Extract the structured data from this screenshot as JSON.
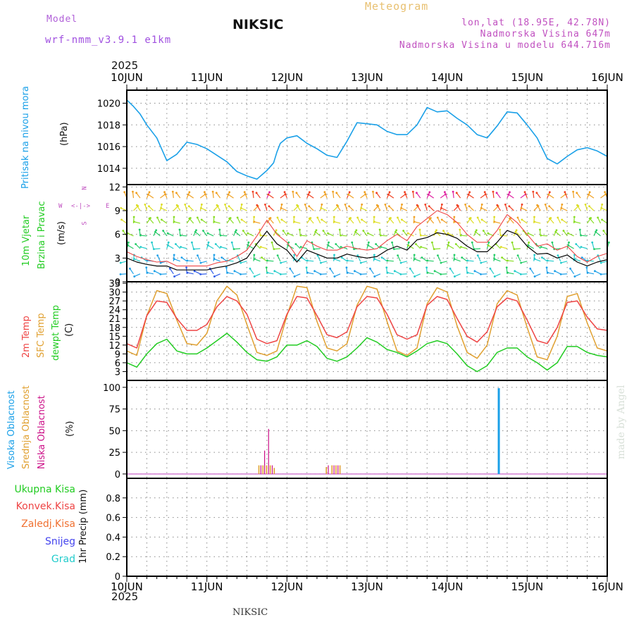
{
  "header": {
    "model_label": "Model",
    "model_name": "wrf-nmm_v3.9.1  e1km",
    "station": "NIKSIC",
    "title": "Meteogram",
    "lonlat": "lon,lat (18.95E, 42.78N)",
    "elevation": "Nadmorska Visina 647m",
    "model_elevation": "Nadmorska Visina u modelu 644.716m",
    "year_top": "2025",
    "year_bottom": "2025",
    "footer_station": "NIKSIC",
    "credit": "made by Angel"
  },
  "colors": {
    "pressure": "#1aa0e8",
    "temp2m": "#ee4444",
    "sfc": "#e0a030",
    "dewpt": "#22cc22",
    "high_cloud": "#1aa0e8",
    "mid_cloud": "#e0a030",
    "low_cloud": "#cc1188",
    "grid": "#888888"
  },
  "x_axis": {
    "days": [
      "10JUN",
      "11JUN",
      "12JUN",
      "13JUN",
      "14JUN",
      "15JUN",
      "16JUN"
    ],
    "hours_total": 144
  },
  "panels": {
    "pressure": {
      "labels": [
        "Pritisak na nivou mora"
      ],
      "unit": "(hPa)",
      "ylim": [
        1012.5,
        1021.2
      ],
      "ticks": [
        1014,
        1016,
        1018,
        1020
      ]
    },
    "wind": {
      "labels": [
        "10m Vjetar",
        "Brzina i Pravac"
      ],
      "unit": "(m/s)",
      "ylim": [
        0,
        12.3
      ],
      "ticks": [
        0,
        3,
        6,
        9,
        12
      ],
      "compass": {
        "n": "N",
        "s": "S",
        "w": "W",
        "e": "E",
        "arrows": "<-|->"
      }
    },
    "temperature": {
      "labels": [
        "2m Temp",
        "SFC Temp",
        "dewpt Temp"
      ],
      "unit": "(C)",
      "ylim": [
        0,
        33.5
      ],
      "ticks": [
        3,
        6,
        9,
        12,
        15,
        18,
        21,
        24,
        27,
        30,
        33
      ]
    },
    "clouds": {
      "labels": [
        "Visoka Oblacnost",
        "Srednja Oblacnost",
        "Niska Oblacnost"
      ],
      "unit": "(%)",
      "ylim": [
        -5,
        108
      ],
      "ticks": [
        0,
        25,
        50,
        75,
        100
      ]
    },
    "precip": {
      "labels": [
        "Ukupna Kisa",
        "Konvek.Kisa",
        "Zaledj.Kisa",
        "Snijeg",
        "Grad"
      ],
      "unit": "1hr Precip (mm)",
      "ylim": [
        0,
        1.0
      ],
      "ticks": [
        0,
        0.2,
        0.4,
        0.6,
        0.8
      ]
    }
  },
  "chart_data": [
    {
      "type": "line",
      "ylabel": "(hPa)",
      "x_hours": [
        0,
        2,
        4,
        6,
        9,
        12,
        15,
        18,
        21,
        24,
        27,
        30,
        33,
        36,
        39,
        42,
        44,
        45,
        46,
        48,
        51,
        54,
        57,
        60,
        63,
        66,
        69,
        72,
        75,
        78,
        81,
        84,
        87,
        90,
        93,
        96,
        99,
        102,
        105,
        108,
        111,
        114,
        117,
        120,
        123,
        126,
        129,
        132,
        135,
        138,
        141,
        144
      ],
      "series": [
        {
          "name": "Pritisak na nivou mora",
          "values": [
            1020.3,
            1019.7,
            1019.0,
            1018.0,
            1016.8,
            1014.7,
            1015.3,
            1016.4,
            1016.2,
            1015.8,
            1015.2,
            1014.6,
            1013.7,
            1013.3,
            1013.0,
            1013.8,
            1014.5,
            1015.5,
            1016.3,
            1016.8,
            1017.0,
            1016.3,
            1015.8,
            1015.2,
            1015.0,
            1016.5,
            1018.2,
            1018.1,
            1018.0,
            1017.4,
            1017.1,
            1017.1,
            1018.0,
            1019.6,
            1019.2,
            1019.3,
            1018.6,
            1018.0,
            1017.1,
            1016.8,
            1017.9,
            1019.2,
            1019.1,
            1018.0,
            1016.8,
            1014.9,
            1014.4,
            1015.1,
            1015.7,
            1015.9,
            1015.6,
            1015.1
          ]
        }
      ]
    },
    {
      "type": "line",
      "ylabel": "(m/s)",
      "x_hours": [
        0,
        3,
        6,
        9,
        12,
        15,
        18,
        21,
        24,
        27,
        30,
        33,
        36,
        39,
        42,
        45,
        48,
        51,
        54,
        57,
        60,
        63,
        66,
        69,
        72,
        75,
        78,
        81,
        84,
        87,
        90,
        93,
        96,
        99,
        102,
        105,
        108,
        111,
        114,
        117,
        120,
        123,
        126,
        129,
        132,
        135,
        138,
        141,
        144
      ],
      "series": [
        {
          "name": "speed",
          "values": [
            3.0,
            2.5,
            2.2,
            2.0,
            2.0,
            1.5,
            1.5,
            1.5,
            1.5,
            1.8,
            2.0,
            2.4,
            3.0,
            4.8,
            6.4,
            4.8,
            4.0,
            2.5,
            4.0,
            3.5,
            3.0,
            3.0,
            3.5,
            3.2,
            3.0,
            3.2,
            4.0,
            4.5,
            4.0,
            5.3,
            5.6,
            6.2,
            6.0,
            5.5,
            4.5,
            3.8,
            3.8,
            5.0,
            6.5,
            6.0,
            4.5,
            3.5,
            3.6,
            3.0,
            3.4,
            2.5,
            2.0,
            2.5,
            2.8
          ]
        },
        {
          "name": "gust",
          "values": [
            3.8,
            3.2,
            2.8,
            2.5,
            2.6,
            2.0,
            2.0,
            2.0,
            2.0,
            2.4,
            2.6,
            3.2,
            4.0,
            5.8,
            7.8,
            6.0,
            5.0,
            3.2,
            5.2,
            4.5,
            4.0,
            4.0,
            4.5,
            4.2,
            4.0,
            4.2,
            5.2,
            6.0,
            5.2,
            7.0,
            8.0,
            9.0,
            8.5,
            7.5,
            6.0,
            5.0,
            5.0,
            6.5,
            8.5,
            7.5,
            6.0,
            4.5,
            4.8,
            4.0,
            4.5,
            3.2,
            2.5,
            3.2,
            3.6
          ]
        }
      ]
    },
    {
      "type": "line",
      "ylabel": "(C)",
      "x_hours": [
        0,
        3,
        6,
        9,
        12,
        15,
        18,
        21,
        24,
        27,
        30,
        33,
        36,
        39,
        42,
        45,
        48,
        51,
        54,
        57,
        60,
        63,
        66,
        69,
        72,
        75,
        78,
        81,
        84,
        87,
        90,
        93,
        96,
        99,
        102,
        105,
        108,
        111,
        114,
        117,
        120,
        123,
        126,
        129,
        132,
        135,
        138,
        141,
        144
      ],
      "series": [
        {
          "name": "2m Temp",
          "values": [
            12.5,
            11.0,
            22.0,
            27.0,
            26.5,
            21.0,
            17.0,
            17.0,
            19.0,
            25.0,
            28.5,
            27.0,
            22.5,
            14.0,
            12.5,
            13.5,
            22.5,
            28.5,
            28.0,
            22.0,
            15.5,
            14.5,
            16.5,
            25.0,
            28.5,
            28.0,
            22.5,
            15.5,
            14.0,
            15.5,
            25.5,
            28.5,
            27.5,
            21.0,
            15.0,
            13.0,
            16.5,
            25.0,
            28.0,
            27.0,
            20.5,
            13.5,
            12.5,
            18.0,
            26.5,
            27.0,
            21.5,
            17.5,
            17.0
          ]
        },
        {
          "name": "SFC Temp",
          "values": [
            10.0,
            8.5,
            22.0,
            30.5,
            29.5,
            20.5,
            12.5,
            12.0,
            16.0,
            27.0,
            32.0,
            29.0,
            19.0,
            9.5,
            8.5,
            10.0,
            22.0,
            32.0,
            31.5,
            20.0,
            11.0,
            10.0,
            12.5,
            25.5,
            32.0,
            31.0,
            20.0,
            10.0,
            8.5,
            11.0,
            26.0,
            31.5,
            30.0,
            18.5,
            9.5,
            7.5,
            12.0,
            26.0,
            30.5,
            29.0,
            18.0,
            8.0,
            7.0,
            15.0,
            28.5,
            29.5,
            19.5,
            11.0,
            10.0
          ]
        },
        {
          "name": "dewpt Temp",
          "values": [
            6.0,
            4.5,
            9.0,
            12.5,
            14.0,
            10.0,
            9.0,
            9.0,
            11.0,
            13.5,
            16.0,
            13.0,
            9.5,
            7.0,
            6.5,
            8.0,
            12.0,
            12.0,
            13.5,
            11.5,
            7.5,
            6.5,
            8.0,
            11.0,
            14.5,
            13.0,
            10.5,
            9.5,
            8.0,
            10.0,
            12.5,
            13.5,
            12.5,
            9.0,
            5.0,
            3.0,
            5.0,
            9.5,
            11.0,
            11.0,
            8.0,
            6.0,
            3.5,
            6.0,
            11.5,
            11.5,
            9.5,
            8.5,
            8.0
          ]
        }
      ]
    },
    {
      "type": "bar",
      "ylabel": "(%)",
      "series": [
        {
          "name": "Visoka Oblacnost",
          "x_hours": [
            111.5
          ],
          "values": [
            99
          ]
        },
        {
          "name": "Srednja Oblacnost",
          "x_hours": [
            39.6,
            40.8,
            41.9,
            43.0,
            44.2,
            59.8,
            61.5,
            62.7,
            63.9
          ],
          "values": [
            10,
            10,
            10,
            10,
            7,
            8,
            10,
            10,
            10
          ]
        },
        {
          "name": "Niska Oblacnost",
          "x_hours": [
            40.2,
            41.3,
            42.5,
            43.6,
            60.4,
            62.1,
            63.3
          ],
          "values": [
            10,
            27,
            52,
            10,
            10,
            10,
            10
          ]
        }
      ]
    },
    {
      "type": "bar",
      "ylabel": "1hr Precip (mm)",
      "series": [
        {
          "name": "Ukupna Kisa",
          "values": []
        },
        {
          "name": "Konvek.Kisa",
          "values": []
        },
        {
          "name": "Zaledj.Kisa",
          "values": []
        },
        {
          "name": "Snijeg",
          "values": []
        },
        {
          "name": "Grad",
          "values": []
        }
      ]
    }
  ]
}
